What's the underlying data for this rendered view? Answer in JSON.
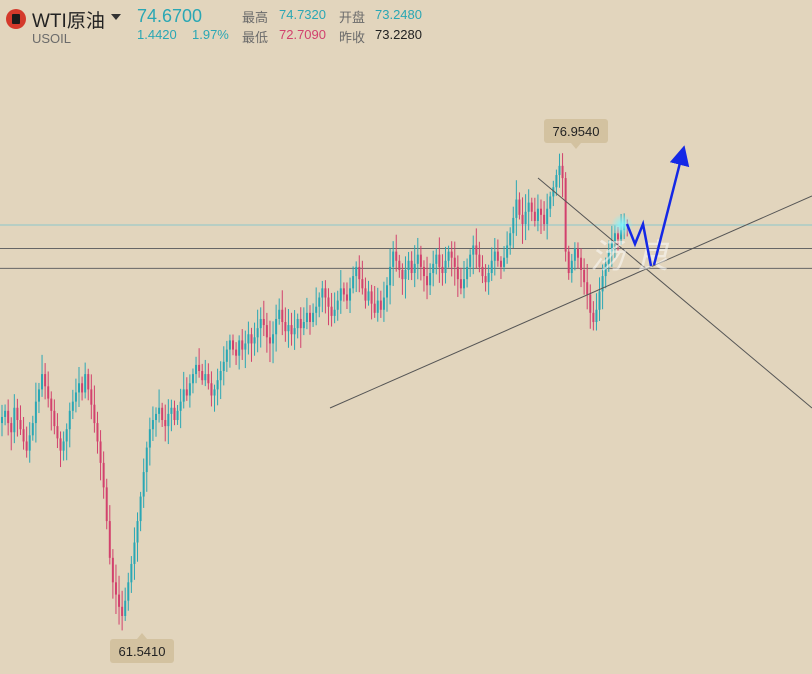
{
  "header": {
    "symbol_name": "WTI原油",
    "symbol_code": "USOIL",
    "price": "74.6700",
    "change": "1.4420",
    "change_pct": "1.97%",
    "high_label": "最高",
    "high_value": "74.7320",
    "low_label": "最低",
    "low_value": "72.7090",
    "open_label": "开盘",
    "open_value": "73.2480",
    "prev_close_label": "昨收",
    "prev_close_value": "73.2280"
  },
  "colors": {
    "background": "#e2d5bd",
    "up": "#2aa7b4",
    "down": "#d2416d",
    "tag_bg": "#d3c2a0",
    "line": "#555555",
    "arrow": "#1428e6"
  },
  "chart_data": {
    "type": "candlestick",
    "ylim": [
      59.3,
      81.5
    ],
    "high_marker": "76.9540",
    "low_marker": "61.5410",
    "last_price_line": 74.67,
    "horizontal_levels": [
      73.9,
      73.25
    ],
    "watermark": "汤 良",
    "closes": [
      68.4,
      68.6,
      68.2,
      67.9,
      68.7,
      68.3,
      68.0,
      67.6,
      67.3,
      67.8,
      68.2,
      68.9,
      69.3,
      69.8,
      69.4,
      69.0,
      68.6,
      68.1,
      67.7,
      67.3,
      67.6,
      68.0,
      68.6,
      68.9,
      69.2,
      69.5,
      69.2,
      69.8,
      69.3,
      68.8,
      68.2,
      67.6,
      66.9,
      66.1,
      65.0,
      63.8,
      63.0,
      62.6,
      62.2,
      61.9,
      62.4,
      63.0,
      63.6,
      64.3,
      65.0,
      65.8,
      66.6,
      67.4,
      68.0,
      68.3,
      68.5,
      68.7,
      68.3,
      68.1,
      68.5,
      68.7,
      68.3,
      68.6,
      68.9,
      69.3,
      69.1,
      69.5,
      69.8,
      70.1,
      69.9,
      69.6,
      69.8,
      69.5,
      69.1,
      69.3,
      69.6,
      69.9,
      70.2,
      70.6,
      70.9,
      70.6,
      70.4,
      70.9,
      70.6,
      70.8,
      71.1,
      70.8,
      71.0,
      71.3,
      71.6,
      71.4,
      71.0,
      70.8,
      71.1,
      71.6,
      71.9,
      71.5,
      71.2,
      71.4,
      71.1,
      71.3,
      71.6,
      71.3,
      71.5,
      71.8,
      71.5,
      71.8,
      72.0,
      72.3,
      72.6,
      72.3,
      72.0,
      71.7,
      71.9,
      72.2,
      72.6,
      72.4,
      72.2,
      72.6,
      73.0,
      73.3,
      72.9,
      72.6,
      72.2,
      72.5,
      72.1,
      71.8,
      72.2,
      71.9,
      72.3,
      72.7,
      73.3,
      73.8,
      73.5,
      73.2,
      72.9,
      73.2,
      73.5,
      73.1,
      73.4,
      73.7,
      73.3,
      73.0,
      72.7,
      73.1,
      73.4,
      73.7,
      73.3,
      73.1,
      73.5,
      73.8,
      73.6,
      73.3,
      72.9,
      72.6,
      72.9,
      73.3,
      73.7,
      74.0,
      73.7,
      73.3,
      73.0,
      72.8,
      73.1,
      73.5,
      73.8,
      73.5,
      73.3,
      73.6,
      74.0,
      74.4,
      74.9,
      75.5,
      75.0,
      74.7,
      75.1,
      75.4,
      75.1,
      74.8,
      75.2,
      75.0,
      74.7,
      75.2,
      75.6,
      75.9,
      76.3,
      76.6,
      76.2,
      73.8,
      73.1,
      73.5,
      73.9,
      73.6,
      73.2,
      72.8,
      72.4,
      71.8,
      71.5,
      71.9,
      72.5,
      73.0,
      73.4,
      73.8,
      74.1,
      74.4,
      74.2,
      74.5,
      74.7,
      74.67
    ]
  },
  "annotations": {
    "support_line": "rising trendline",
    "resistance_line": "falling trendline",
    "forecast_path": "blue arrow path"
  }
}
